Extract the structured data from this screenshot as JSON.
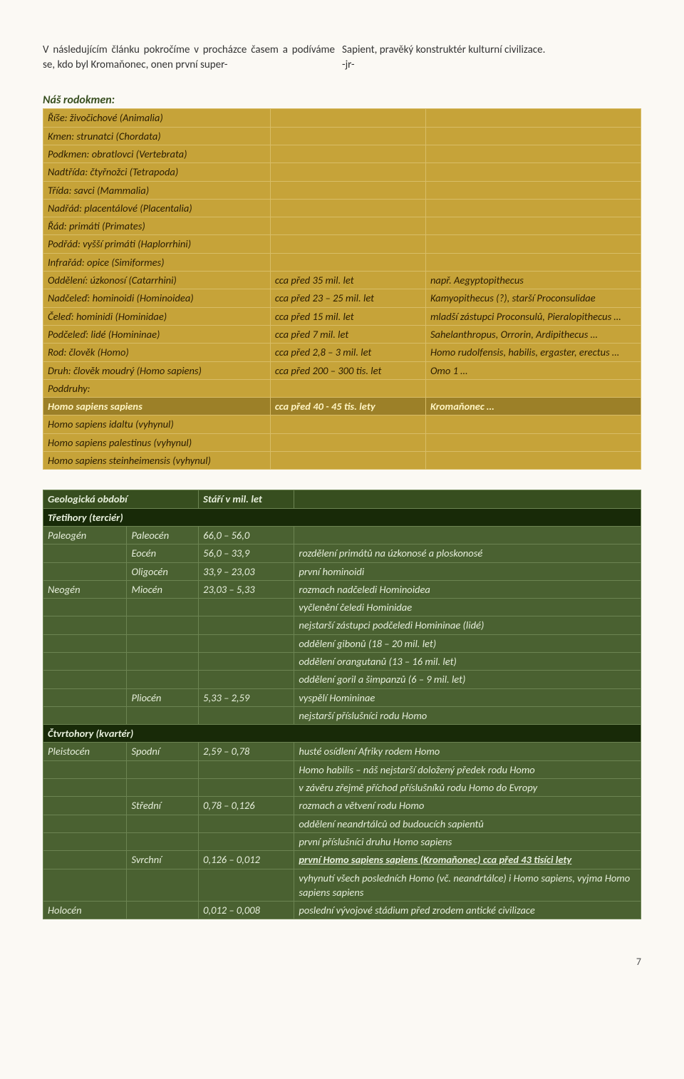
{
  "intro": {
    "left": "V následujícím článku pokročíme v procházce časem a podíváme se,  kdo byl Kromaňonec,  onen první super-",
    "right_line1": "Sapient, pravěký konstruktér kulturní civilizace.",
    "right_line2": "-jr-"
  },
  "taxo_heading": "Náš rodokmen:",
  "taxo": [
    {
      "a": "Říše: živočichové (Animalia)"
    },
    {
      "a": "Kmen: strunatci (Chordata)"
    },
    {
      "a": "Podkmen: obratlovci (Vertebrata)"
    },
    {
      "a": "Nadtřída: čtyřnožci (Tetrapoda)"
    },
    {
      "a": "Třída: savci (Mammalia)"
    },
    {
      "a": "Nadřád: placentálové (Placentalia)"
    },
    {
      "a": "Řád: primáti (Primates)"
    },
    {
      "a": "Podřád: vyšší primáti (Haplorrhini)"
    },
    {
      "a": "Infrařád: opice (Simiformes)"
    },
    {
      "a": "Oddělení: úzkonosí (Catarrhini)",
      "b": "cca před 35 mil. let",
      "c": "např. Aegyptopithecus"
    },
    {
      "a": "Nadčeleď: hominoidi (Hominoidea)",
      "b": "cca před 23 – 25 mil. let",
      "c": "Kamyopithecus (?), starší Proconsulidae"
    },
    {
      "a": "Čeleď: hominidi (Hominidae)",
      "b": "cca před 15 mil. let",
      "c": "mladší zástupci Proconsulů, Pieralopithecus …"
    },
    {
      "a": "Podčeleď: lidé (Homininae)",
      "b": "cca před 7 mil. let",
      "c": "Sahelanthropus, Orrorin, Ardipithecus …"
    },
    {
      "a": "Rod: člověk (Homo)",
      "b": "cca před 2,8 – 3 mil. let",
      "c": "Homo rudolfensis, habilis, ergaster, erectus …"
    },
    {
      "a": "Druh: člověk moudrý (Homo sapiens)",
      "b": "cca před 200 – 300 tis. let",
      "c": "Omo 1 …"
    },
    {
      "a": "Poddruhy:"
    },
    {
      "a": "Homo sapiens sapiens",
      "b": "cca před 40 - 45 tis. lety",
      "c": "Kromaňonec …",
      "hl": true
    },
    {
      "a": "Homo sapiens idaltu (vyhynul)"
    },
    {
      "a": "Homo sapiens palestinus (vyhynul)"
    },
    {
      "a": "Homo sapiens steinheimensis (vyhynul)"
    }
  ],
  "geo_header": {
    "a": "Geologická období",
    "b": "Stáří v mil. let"
  },
  "geo_era1": "Třetihory (terciér)",
  "geo_rows1": [
    {
      "a": "Paleogén",
      "b": "Paleocén",
      "c": "66,0 – 56,0",
      "d": ""
    },
    {
      "a": "",
      "b": "Eocén",
      "c": "56,0 – 33,9",
      "d": "rozdělení primátů na úzkonosé a ploskonosé"
    },
    {
      "a": "",
      "b": "Oligocén",
      "c": "33,9 – 23,03",
      "d": "první hominoidi"
    },
    {
      "a": "Neogén",
      "b": "Miocén",
      "c": "23,03 – 5,33",
      "d": "rozmach nadčeledi Hominoidea"
    },
    {
      "a": "",
      "b": "",
      "c": "",
      "d": "vyčlenění čeledi Hominidae"
    },
    {
      "a": "",
      "b": "",
      "c": "",
      "d": "nejstarší zástupci podčeledi Homininae (lidé)"
    },
    {
      "a": "",
      "b": "",
      "c": "",
      "d": "oddělení gibonů (18 – 20 mil. let)"
    },
    {
      "a": "",
      "b": "",
      "c": "",
      "d": "oddělení orangutanů (13 – 16 mil. let)"
    },
    {
      "a": "",
      "b": "",
      "c": "",
      "d": "oddělení goril a šimpanzů (6 – 9 mil. let)"
    },
    {
      "a": "",
      "b": "Pliocén",
      "c": "5,33 – 2,59",
      "d": "vyspělí Homininae"
    },
    {
      "a": "",
      "b": "",
      "c": "",
      "d": "nejstarší příslušníci rodu Homo"
    }
  ],
  "geo_era2": "Čtvrtohory (kvartér)",
  "geo_rows2": [
    {
      "a": "Pleistocén",
      "b": "Spodní",
      "c": "2,59 – 0,78",
      "d": "husté osídlení Afriky rodem Homo"
    },
    {
      "a": "",
      "b": "",
      "c": "",
      "d": "Homo habilis – náš nejstarší doložený předek rodu Homo"
    },
    {
      "a": "",
      "b": "",
      "c": "",
      "d": "v závěru zřejmě příchod příslušníků rodu Homo do Evropy"
    },
    {
      "a": "",
      "b": "Střední",
      "c": "0,78 – 0,126",
      "d": "rozmach a větvení rodu Homo"
    },
    {
      "a": "",
      "b": "",
      "c": "",
      "d": "oddělení neandrtálců od budoucích sapientů"
    },
    {
      "a": "",
      "b": "",
      "c": "",
      "d": "první příslušníci druhu Homo sapiens"
    },
    {
      "a": "",
      "b": "Svrchní",
      "c": "0,126 – 0,012",
      "d": "první Homo sapiens sapiens (Kromaňonec) cca před 43 tisíci lety",
      "bu": true
    },
    {
      "a": "",
      "b": "",
      "c": "",
      "d": "vyhynutí všech posledních Homo (vč. neandrtálce) i Homo sapiens, vyjma Homo sapiens sapiens"
    },
    {
      "a": "Holocén",
      "b": "",
      "c": "0,012 – 0,008",
      "d": "poslední vývojové stádium před zrodem antické civilizace"
    }
  ],
  "pagenum": "7"
}
